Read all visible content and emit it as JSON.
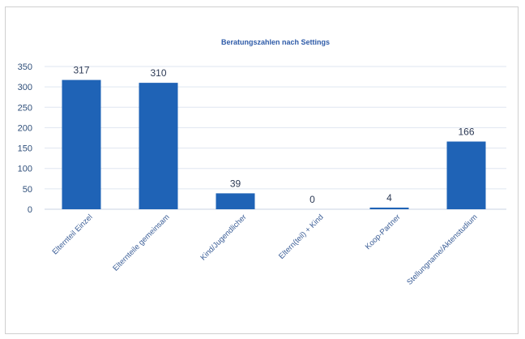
{
  "chart_data": {
    "type": "bar",
    "title": "Beratungszahlen nach Settings",
    "xlabel": "",
    "ylabel": "",
    "categories": [
      "Elternteil Einzel",
      "Elternteile gemeinsam",
      "Kind/Jugendlicher",
      "Eltern(teil) + Kind",
      "Koop-Partner",
      "Stellungname/Aktenstudium"
    ],
    "values": [
      317,
      310,
      39,
      0,
      4,
      166
    ],
    "ylim": [
      0,
      350
    ],
    "yticks": [
      0,
      50,
      100,
      150,
      200,
      250,
      300,
      350
    ],
    "grid": true,
    "legend": "none",
    "bar_color": "#1f63b6"
  }
}
